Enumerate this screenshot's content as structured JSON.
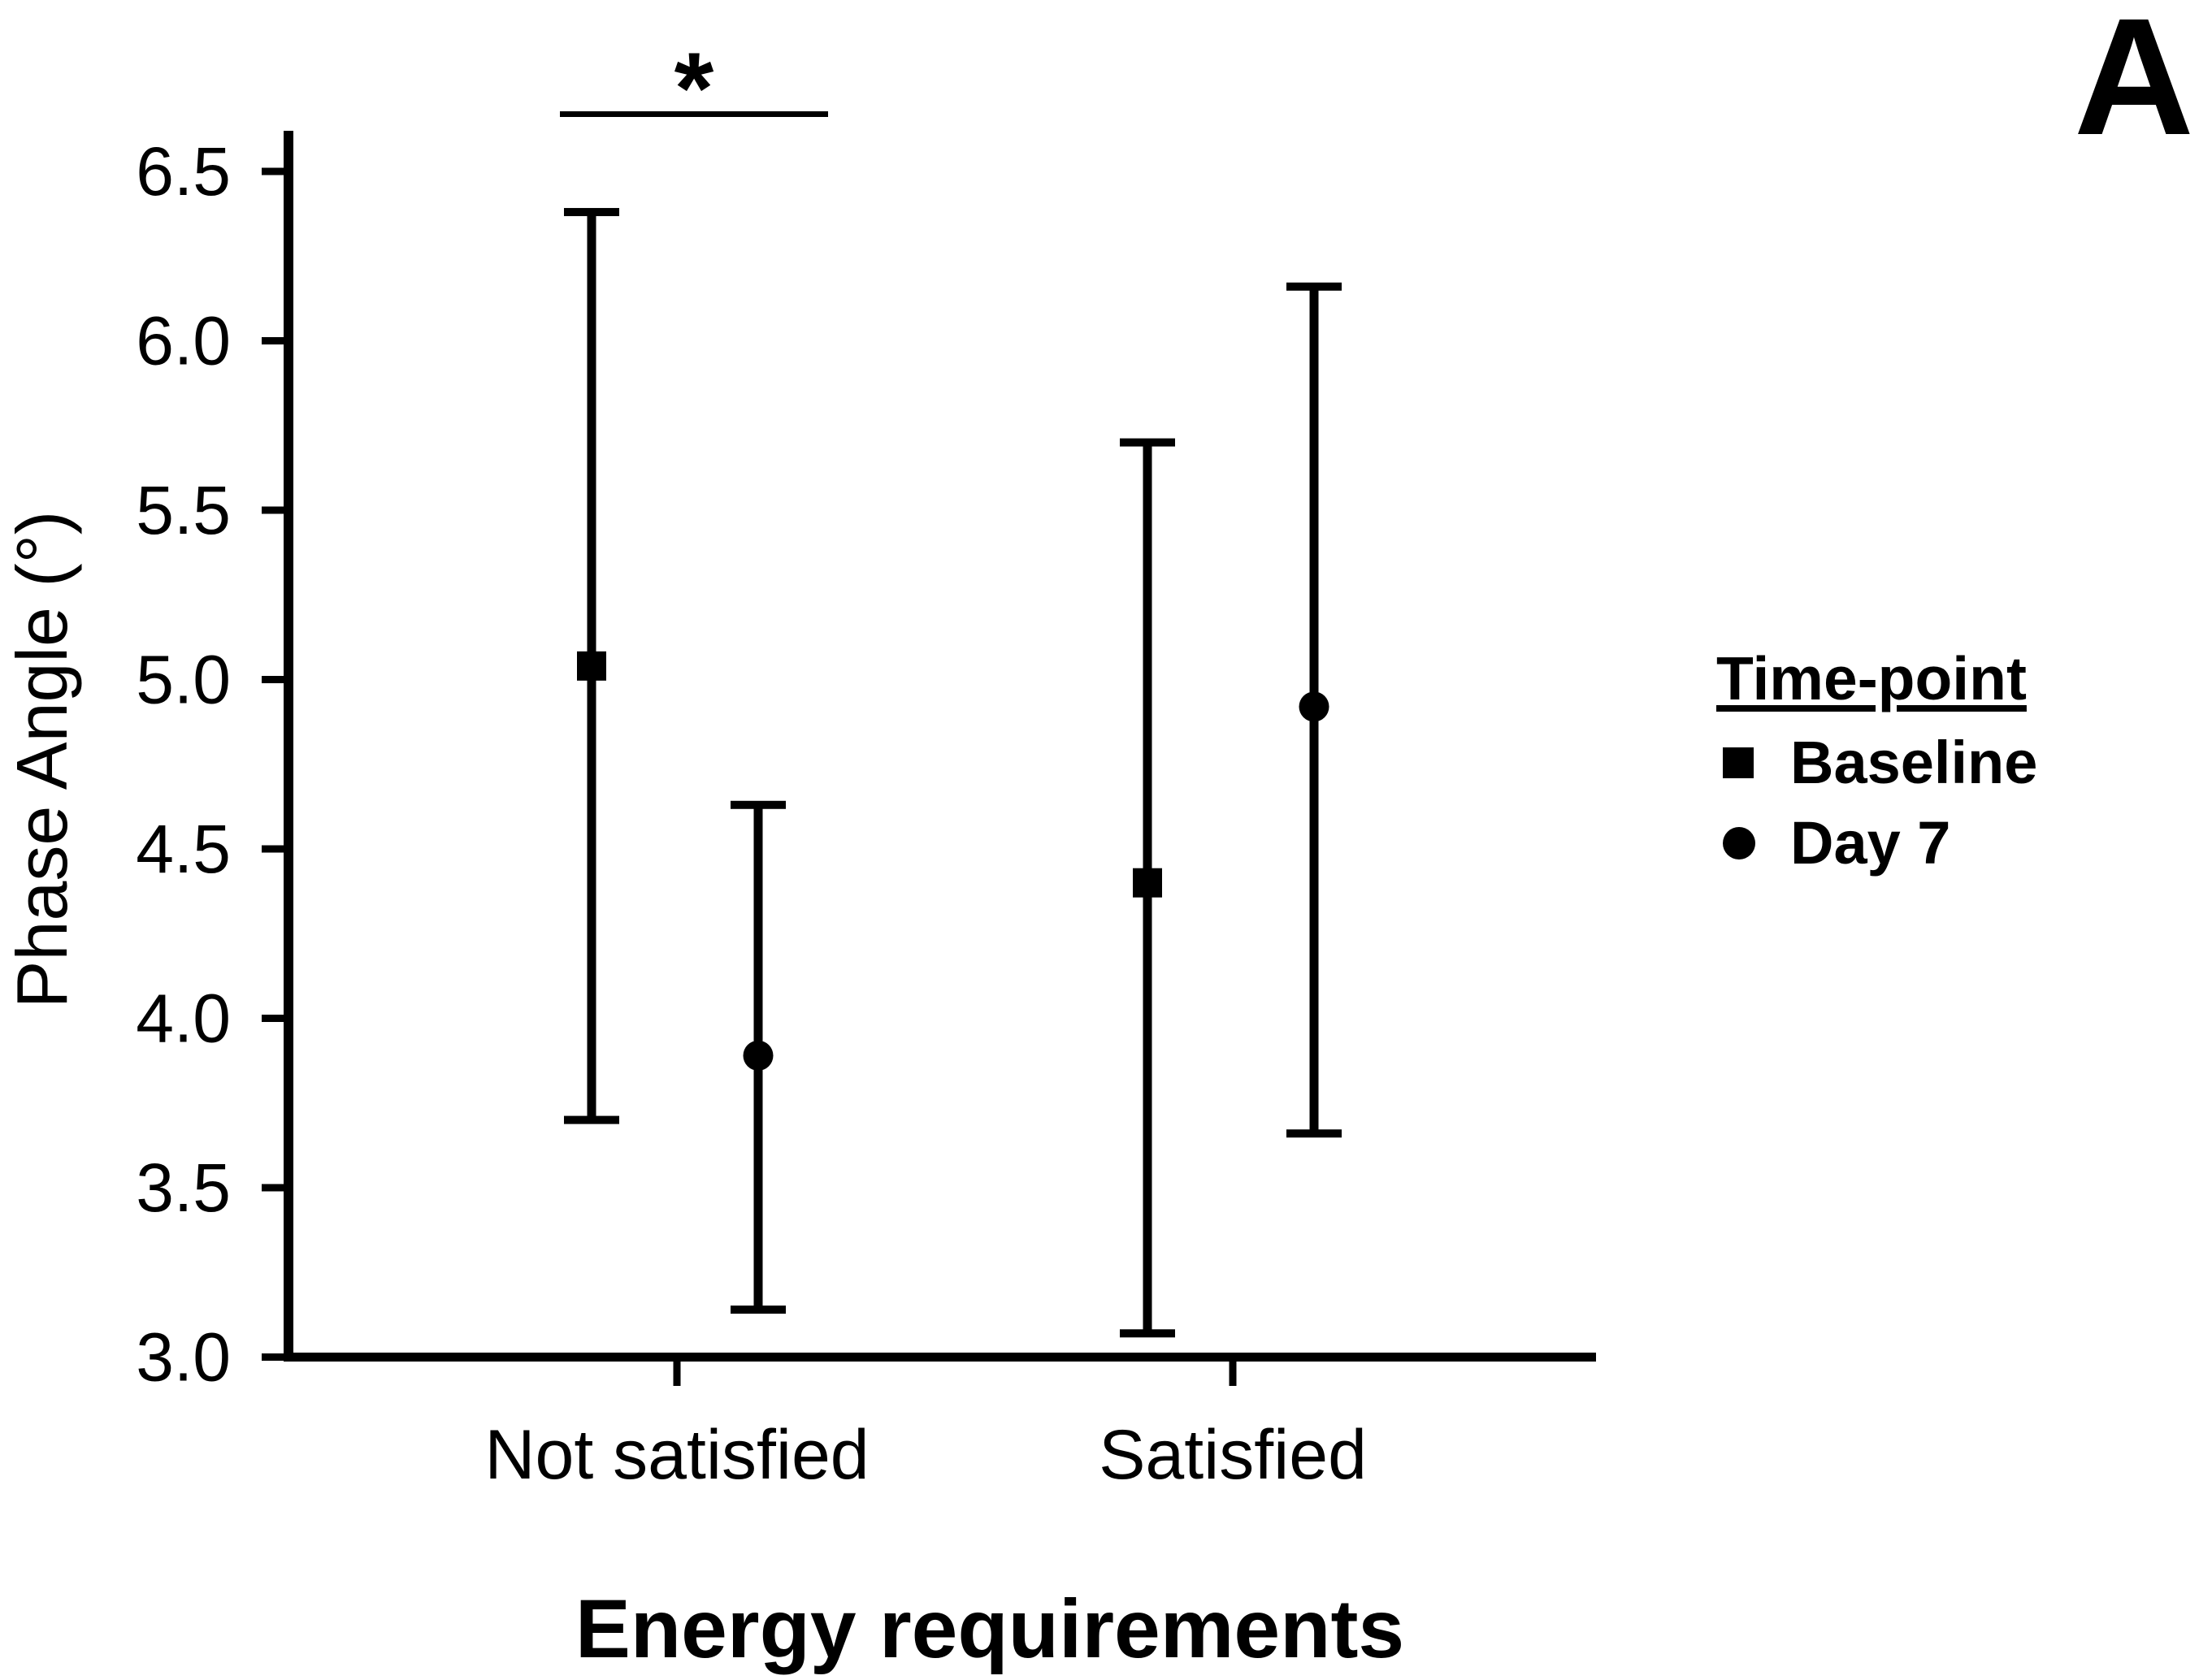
{
  "chart_data": {
    "type": "scatter",
    "panel_label": "A",
    "xlabel": "Energy requirements",
    "ylabel": "Phase Angle (°)",
    "categories": [
      "Not satisfied",
      "Satisfied"
    ],
    "ylim": [
      3.0,
      6.62
    ],
    "yticks": [
      6.5,
      6.0,
      5.5,
      5.0,
      4.5,
      4.0,
      3.5,
      3.0
    ],
    "ytick_labels": [
      "6.5",
      "6.0",
      "5.5",
      "5.0",
      "4.5",
      "4.0",
      "3.5",
      "3.0"
    ],
    "grid": false,
    "series": [
      {
        "name": "Baseline",
        "marker": "square",
        "points": [
          {
            "category": "Not satisfied",
            "mean": 5.04,
            "ci_low": 3.7,
            "ci_high": 6.38
          },
          {
            "category": "Satisfied",
            "mean": 4.4,
            "ci_low": 3.07,
            "ci_high": 5.7
          }
        ]
      },
      {
        "name": "Day 7",
        "marker": "circle",
        "points": [
          {
            "category": "Not satisfied",
            "mean": 3.89,
            "ci_low": 3.14,
            "ci_high": 4.63
          },
          {
            "category": "Satisfied",
            "mean": 4.92,
            "ci_low": 3.66,
            "ci_high": 6.16
          }
        ]
      }
    ],
    "legend": {
      "title": "Time-point",
      "entries": [
        {
          "marker": "square",
          "label": "Baseline"
        },
        {
          "marker": "circle",
          "label": "Day 7"
        }
      ],
      "position": "right"
    },
    "annotations": {
      "significance": {
        "label": "*",
        "category": "Not satisfied",
        "between": [
          "Baseline",
          "Day 7"
        ]
      }
    },
    "colors": {
      "foreground": "#000000",
      "background": "#ffffff"
    }
  }
}
